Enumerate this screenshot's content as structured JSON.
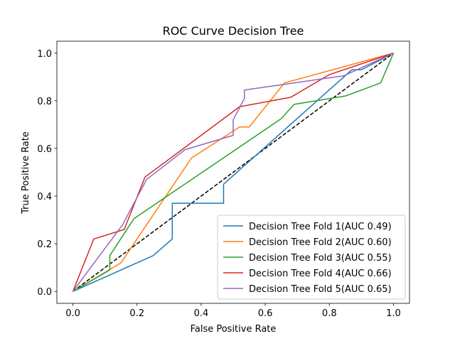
{
  "chart_data": {
    "type": "line",
    "title": "ROC Curve Decision Tree",
    "xlabel": "False Positive Rate",
    "ylabel": "True Positive Rate",
    "xlim": [
      -0.05,
      1.05
    ],
    "ylim": [
      -0.05,
      1.05
    ],
    "xticks": [
      "0.0",
      "0.2",
      "0.4",
      "0.6",
      "0.8",
      "1.0"
    ],
    "yticks": [
      "0.0",
      "0.2",
      "0.4",
      "0.6",
      "0.8",
      "1.0"
    ],
    "grid": false,
    "legend_position": "lower-right",
    "diagonal": {
      "x": [
        0,
        1
      ],
      "y": [
        0,
        1
      ],
      "style": "dashed",
      "color": "#000000"
    },
    "series": [
      {
        "name": "Decision Tree Fold 1(AUC 0.49)",
        "color": "#1f77b4",
        "x": [
          0,
          0.25,
          0.31,
          0.31,
          0.47,
          0.47,
          0.87,
          0.9,
          1.0
        ],
        "y": [
          0,
          0.15,
          0.22,
          0.37,
          0.37,
          0.45,
          0.93,
          0.93,
          1.0
        ]
      },
      {
        "name": "Decision Tree Fold 2(AUC 0.60)",
        "color": "#ff7f0e",
        "x": [
          0,
          0.15,
          0.37,
          0.52,
          0.55,
          0.66,
          1.0
        ],
        "y": [
          0,
          0.12,
          0.56,
          0.69,
          0.69,
          0.875,
          1.0
        ]
      },
      {
        "name": "Decision Tree Fold 3(AUC 0.55)",
        "color": "#2ca02c",
        "x": [
          0,
          0.115,
          0.115,
          0.19,
          0.65,
          0.69,
          0.85,
          0.96,
          1.0
        ],
        "y": [
          0,
          0.09,
          0.15,
          0.305,
          0.725,
          0.785,
          0.82,
          0.875,
          1.0
        ]
      },
      {
        "name": "Decision Tree Fold 4(AUC 0.66)",
        "color": "#d62728",
        "x": [
          0,
          0.065,
          0.16,
          0.225,
          0.52,
          0.68,
          0.8,
          1.0
        ],
        "y": [
          0,
          0.22,
          0.26,
          0.48,
          0.775,
          0.815,
          0.91,
          1.0
        ]
      },
      {
        "name": "Decision Tree Fold 5(AUC 0.65)",
        "color": "#9467bd",
        "x": [
          0,
          0.155,
          0.23,
          0.35,
          0.5,
          0.5,
          0.535,
          0.535,
          0.665,
          0.845,
          1.0
        ],
        "y": [
          0,
          0.28,
          0.47,
          0.595,
          0.655,
          0.72,
          0.81,
          0.845,
          0.87,
          0.905,
          1.0
        ]
      }
    ]
  }
}
